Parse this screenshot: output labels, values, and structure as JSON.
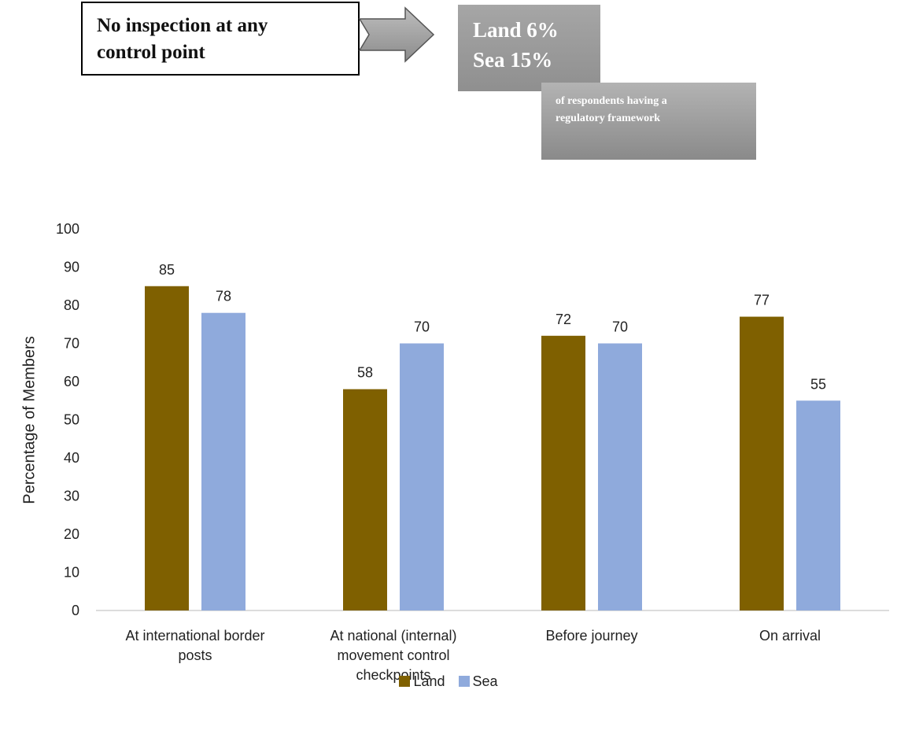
{
  "callout": {
    "text_line1": "No inspection at any",
    "text_line2": "control point"
  },
  "stat": {
    "line1": "Land 6%",
    "line2": "Sea 15%",
    "sub_line1": "of respondents having a",
    "sub_line2": "regulatory framework"
  },
  "colors": {
    "land": "#7f6000",
    "sea": "#8faadc"
  },
  "chart_data": {
    "type": "bar",
    "categories": [
      [
        "At international border",
        "posts"
      ],
      [
        "At national (internal)",
        "movement control",
        "checkpoints"
      ],
      [
        "Before journey"
      ],
      [
        "On arrival"
      ]
    ],
    "series": [
      {
        "name": "Land",
        "values": [
          85,
          58,
          72,
          77
        ],
        "labels": [
          "85",
          "58",
          "72",
          "77"
        ]
      },
      {
        "name": "Sea",
        "values": [
          78,
          70,
          70,
          55
        ],
        "labels": [
          "78",
          "70",
          "70",
          "55"
        ]
      }
    ],
    "ylabel": "Percentage of Members",
    "ylim": [
      0,
      100
    ],
    "yticks": [
      0,
      10,
      20,
      30,
      40,
      50,
      60,
      70,
      80,
      90,
      100
    ],
    "grid": false,
    "legend": "bottom"
  }
}
